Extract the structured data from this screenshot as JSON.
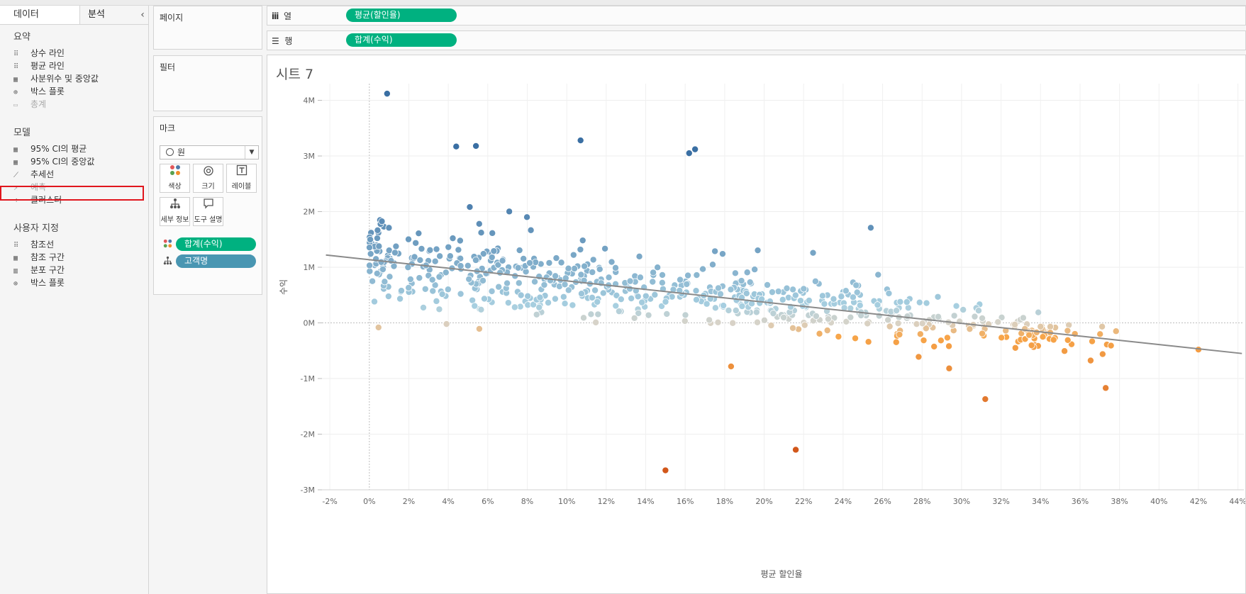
{
  "left_pane": {
    "tab_data": "데이터",
    "tab_analysis": "분석",
    "collapse_glyph": "‹",
    "sections": [
      {
        "title": "요약",
        "items": [
          {
            "label": "상수 라인",
            "icon": "constant-line-icon",
            "enabled": true
          },
          {
            "label": "평균 라인",
            "icon": "average-line-icon",
            "enabled": true
          },
          {
            "label": "사분위수 및 중앙값",
            "icon": "quartile-icon",
            "enabled": true
          },
          {
            "label": "박스 플롯",
            "icon": "box-plot-icon",
            "enabled": true
          },
          {
            "label": "총계",
            "icon": "totals-icon",
            "enabled": false
          }
        ]
      },
      {
        "title": "모델",
        "items": [
          {
            "label": "95% CI의 평균",
            "icon": "ci-mean-icon",
            "enabled": true
          },
          {
            "label": "95% CI의 중앙값",
            "icon": "ci-median-icon",
            "enabled": true
          },
          {
            "label": "추세선",
            "icon": "trend-line-icon",
            "enabled": true,
            "highlighted": true
          },
          {
            "label": "예측",
            "icon": "forecast-icon",
            "enabled": false
          },
          {
            "label": "클러스터",
            "icon": "cluster-icon",
            "enabled": true
          }
        ]
      },
      {
        "title": "사용자 지정",
        "items": [
          {
            "label": "참조선",
            "icon": "reference-line-icon",
            "enabled": true
          },
          {
            "label": "참조 구간",
            "icon": "reference-band-icon",
            "enabled": true
          },
          {
            "label": "분포 구간",
            "icon": "distribution-band-icon",
            "enabled": true
          },
          {
            "label": "박스 플롯",
            "icon": "box-plot-icon",
            "enabled": true
          }
        ]
      }
    ]
  },
  "pages_card": {
    "title": "페이지"
  },
  "filters_card": {
    "title": "필터"
  },
  "marks_card": {
    "title": "마크",
    "mark_type": "원",
    "buttons": [
      {
        "label": "색상",
        "icon": "color-icon"
      },
      {
        "label": "크기",
        "icon": "size-icon"
      },
      {
        "label": "레이블",
        "icon": "label-icon"
      },
      {
        "label": "세부 정보",
        "icon": "detail-icon"
      },
      {
        "label": "도구 설명",
        "icon": "tooltip-icon"
      }
    ],
    "fields": [
      {
        "label": "합계(수익)",
        "icon": "color-icon",
        "color": "#00b180"
      },
      {
        "label": "고객명",
        "icon": "detail-icon",
        "color": "#4996b2"
      }
    ]
  },
  "columns_shelf": {
    "label": "열",
    "icon_glyph": "iii",
    "pill": "평균(할인율)"
  },
  "rows_shelf": {
    "label": "행",
    "icon_glyph": "☰",
    "pill": "합계(수익)"
  },
  "sheet": {
    "title": "시트 7"
  },
  "chart_data": {
    "type": "scatter",
    "title": "시트 7",
    "xlabel": "평균 할인율",
    "ylabel": "수익",
    "x_ticks": [
      "-2%",
      "0%",
      "2%",
      "4%",
      "6%",
      "8%",
      "10%",
      "12%",
      "14%",
      "16%",
      "18%",
      "20%",
      "22%",
      "24%",
      "26%",
      "28%",
      "30%",
      "32%",
      "34%",
      "36%",
      "38%",
      "40%",
      "42%",
      "44%"
    ],
    "y_ticks": [
      "4M",
      "3M",
      "2M",
      "1M",
      "0M",
      "-1M",
      "-2M",
      "-3M"
    ],
    "xlim": [
      -0.024,
      0.443
    ],
    "ylim": [
      -3.0,
      4.3
    ],
    "grid": true,
    "color_encoding": "합계(수익)",
    "colors": {
      "neg_strong": "#d2571a",
      "neg": "#f7a549",
      "neutral": "#d8d3c8",
      "pos": "#a7cfe0",
      "pos_strong": "#3a6fa3"
    },
    "trend_line": {
      "x": [
        -0.022,
        0.442
      ],
      "y": [
        1.22,
        -0.55
      ],
      "color": "#8a8a8a"
    },
    "notable_points": [
      {
        "x": 0.009,
        "y": 4.12
      },
      {
        "x": 0.107,
        "y": 3.28
      },
      {
        "x": 0.165,
        "y": 3.12
      },
      {
        "x": 0.162,
        "y": 3.05
      },
      {
        "x": 0.044,
        "y": 3.17
      },
      {
        "x": 0.054,
        "y": 3.18
      },
      {
        "x": 0.15,
        "y": -2.65
      },
      {
        "x": 0.216,
        "y": -2.28
      },
      {
        "x": 0.312,
        "y": -1.37
      },
      {
        "x": 0.373,
        "y": -1.17
      },
      {
        "x": 0.42,
        "y": -0.48
      },
      {
        "x": 0.254,
        "y": 1.71
      }
    ],
    "point_cloud": {
      "count": 650,
      "seed": 7
    }
  }
}
